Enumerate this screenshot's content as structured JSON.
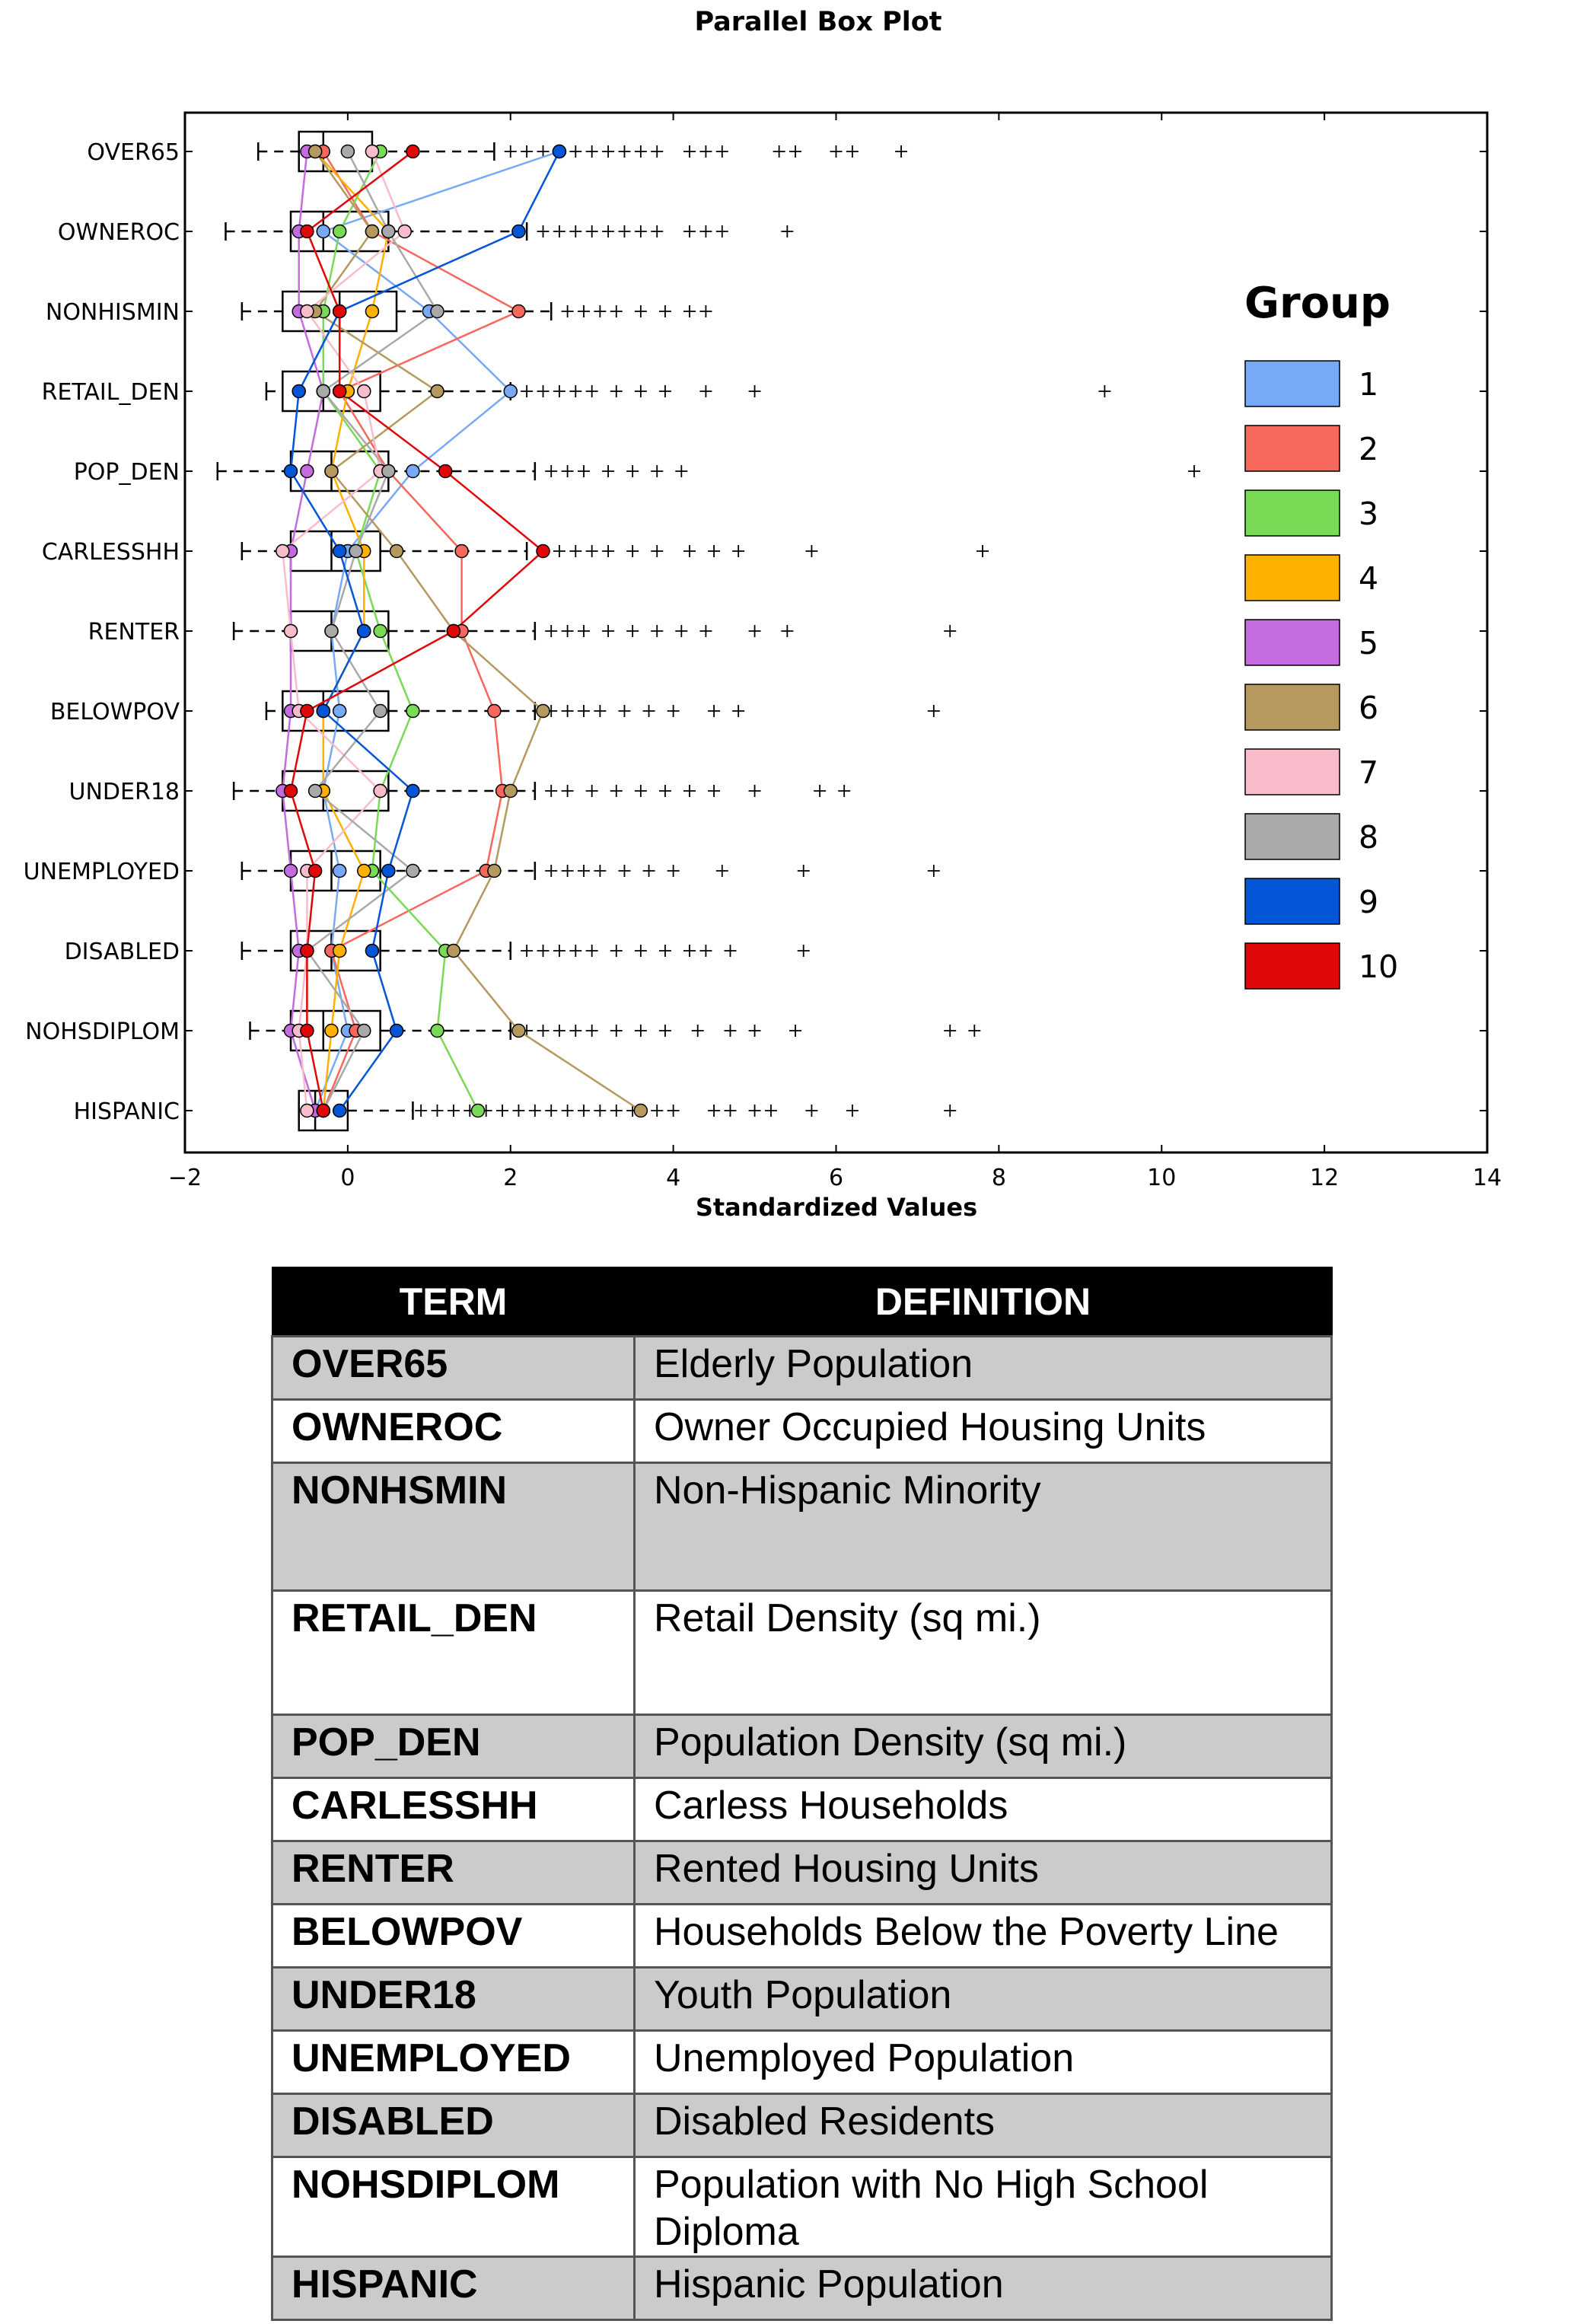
{
  "chart_data": {
    "type": "box",
    "title": "Parallel Box Plot",
    "xlabel": "Standardized Values",
    "xlim": [
      -2,
      14
    ],
    "x_ticks": [
      "−2",
      "0",
      "2",
      "4",
      "6",
      "8",
      "10",
      "12",
      "14"
    ],
    "x_tick_values": [
      -2,
      0,
      2,
      4,
      6,
      8,
      10,
      12,
      14
    ],
    "categories": [
      "OVER65",
      "OWNEROC",
      "NONHISMIN",
      "RETAIL_DEN",
      "POP_DEN",
      "CARLESSHH",
      "RENTER",
      "BELOWPOV",
      "UNDER18",
      "UNEMPLOYED",
      "DISABLED",
      "NOHSDIPLOM",
      "HISPANIC"
    ],
    "boxes": [
      {
        "whisker_low": -1.1,
        "q1": -0.6,
        "median": -0.3,
        "q3": 0.3,
        "whisker_high": 1.8,
        "outliers": [
          2.0,
          2.2,
          2.4,
          2.6,
          2.8,
          3.0,
          3.2,
          3.4,
          3.6,
          3.8,
          4.2,
          4.4,
          4.6,
          5.3,
          5.5,
          6.0,
          6.2,
          6.8
        ]
      },
      {
        "whisker_low": -1.5,
        "q1": -0.7,
        "median": -0.3,
        "q3": 0.5,
        "whisker_high": 2.2,
        "outliers": [
          2.4,
          2.6,
          2.8,
          3.0,
          3.2,
          3.4,
          3.6,
          3.8,
          4.2,
          4.4,
          4.6,
          5.4
        ]
      },
      {
        "whisker_low": -1.3,
        "q1": -0.8,
        "median": -0.1,
        "q3": 0.6,
        "whisker_high": 2.5,
        "outliers": [
          2.7,
          2.9,
          3.1,
          3.3,
          3.6,
          3.9,
          4.2,
          4.4
        ]
      },
      {
        "whisker_low": -1.0,
        "q1": -0.8,
        "median": -0.3,
        "q3": 0.4,
        "whisker_high": 2.0,
        "outliers": [
          2.2,
          2.4,
          2.6,
          2.8,
          3.0,
          3.3,
          3.6,
          3.9,
          4.4,
          5.0,
          9.3
        ]
      },
      {
        "whisker_low": -1.6,
        "q1": -0.7,
        "median": -0.2,
        "q3": 0.5,
        "whisker_high": 2.3,
        "outliers": [
          2.5,
          2.7,
          2.9,
          3.2,
          3.5,
          3.8,
          4.1,
          10.4
        ]
      },
      {
        "whisker_low": -1.3,
        "q1": -0.7,
        "median": -0.2,
        "q3": 0.4,
        "whisker_high": 2.2,
        "outliers": [
          2.4,
          2.6,
          2.8,
          3.0,
          3.2,
          3.5,
          3.8,
          4.2,
          4.5,
          4.8,
          5.7,
          7.8
        ]
      },
      {
        "whisker_low": -1.4,
        "q1": -0.7,
        "median": -0.2,
        "q3": 0.5,
        "whisker_high": 2.3,
        "outliers": [
          2.5,
          2.7,
          2.9,
          3.2,
          3.5,
          3.8,
          4.1,
          4.4,
          5.0,
          5.4,
          7.4
        ]
      },
      {
        "whisker_low": -1.0,
        "q1": -0.8,
        "median": -0.3,
        "q3": 0.5,
        "whisker_high": 2.3,
        "outliers": [
          2.5,
          2.7,
          2.9,
          3.1,
          3.4,
          3.7,
          4.0,
          4.5,
          4.8,
          7.2
        ]
      },
      {
        "whisker_low": -1.4,
        "q1": -0.8,
        "median": -0.3,
        "q3": 0.5,
        "whisker_high": 2.3,
        "outliers": [
          2.5,
          2.7,
          3.0,
          3.3,
          3.6,
          3.9,
          4.2,
          4.5,
          5.0,
          5.8,
          6.1
        ]
      },
      {
        "whisker_low": -1.3,
        "q1": -0.7,
        "median": -0.2,
        "q3": 0.4,
        "whisker_high": 2.3,
        "outliers": [
          2.5,
          2.7,
          2.9,
          3.1,
          3.4,
          3.7,
          4.0,
          4.6,
          5.6,
          7.2
        ]
      },
      {
        "whisker_low": -1.3,
        "q1": -0.7,
        "median": -0.2,
        "q3": 0.4,
        "whisker_high": 2.0,
        "outliers": [
          2.2,
          2.4,
          2.6,
          2.8,
          3.0,
          3.3,
          3.6,
          3.9,
          4.2,
          4.4,
          4.7,
          5.6
        ]
      },
      {
        "whisker_low": -1.2,
        "q1": -0.7,
        "median": -0.3,
        "q3": 0.4,
        "whisker_high": 2.0,
        "outliers": [
          2.2,
          2.4,
          2.6,
          2.8,
          3.0,
          3.3,
          3.6,
          3.9,
          4.3,
          4.7,
          5.0,
          5.5,
          7.4,
          7.7
        ]
      },
      {
        "whisker_low": -0.6,
        "q1": -0.6,
        "median": -0.4,
        "q3": 0.0,
        "whisker_high": 0.8,
        "outliers": [
          0.9,
          1.1,
          1.3,
          1.5,
          1.7,
          1.9,
          2.1,
          2.3,
          2.5,
          2.7,
          2.9,
          3.1,
          3.3,
          3.5,
          3.8,
          4.0,
          4.5,
          4.7,
          5.0,
          5.2,
          5.7,
          6.2,
          7.4
        ]
      }
    ],
    "series": [
      {
        "name": "1",
        "color": "#78a9f7",
        "values": [
          2.6,
          -0.3,
          1.0,
          2.0,
          0.8,
          0.0,
          -0.2,
          -0.1,
          -0.3,
          -0.1,
          -0.2,
          0.0,
          -0.4
        ]
      },
      {
        "name": "2",
        "color": "#f8675c",
        "values": [
          -0.3,
          0.3,
          2.1,
          -0.1,
          0.5,
          1.4,
          1.4,
          1.8,
          1.9,
          1.7,
          -0.2,
          0.1,
          -0.3
        ]
      },
      {
        "name": "3",
        "color": "#79da55",
        "values": [
          0.4,
          -0.1,
          -0.3,
          -0.3,
          0.4,
          0.1,
          0.4,
          0.8,
          0.4,
          0.3,
          1.2,
          1.1,
          1.6
        ]
      },
      {
        "name": "4",
        "color": "#ffb000",
        "values": [
          -0.4,
          0.5,
          0.3,
          0.0,
          -0.2,
          0.2,
          0.2,
          -0.3,
          -0.3,
          0.2,
          -0.1,
          -0.2,
          -0.3
        ]
      },
      {
        "name": "5",
        "color": "#c46be0",
        "values": [
          -0.5,
          -0.6,
          -0.6,
          -0.3,
          -0.5,
          -0.7,
          -0.7,
          -0.7,
          -0.8,
          -0.7,
          -0.6,
          -0.7,
          -0.4
        ]
      },
      {
        "name": "6",
        "color": "#b5995f",
        "values": [
          -0.4,
          0.3,
          -0.4,
          1.1,
          -0.2,
          0.6,
          1.3,
          2.4,
          2.0,
          1.8,
          1.3,
          2.1,
          3.6
        ]
      },
      {
        "name": "7",
        "color": "#f8bccb",
        "values": [
          0.3,
          0.7,
          -0.5,
          0.2,
          0.4,
          -0.8,
          -0.7,
          -0.6,
          0.4,
          -0.5,
          -0.5,
          -0.6,
          -0.5
        ]
      },
      {
        "name": "8",
        "color": "#a9a9a9",
        "values": [
          0.0,
          0.5,
          1.1,
          -0.3,
          0.5,
          0.1,
          -0.2,
          0.4,
          -0.4,
          0.8,
          -0.5,
          0.2,
          -0.3
        ]
      },
      {
        "name": "9",
        "color": "#0356d8",
        "values": [
          2.6,
          2.1,
          -0.1,
          -0.6,
          -0.7,
          -0.1,
          0.2,
          -0.3,
          0.8,
          0.5,
          0.3,
          0.6,
          -0.1
        ]
      },
      {
        "name": "10",
        "color": "#e00808",
        "values": [
          0.8,
          -0.5,
          -0.1,
          -0.1,
          1.2,
          2.4,
          1.3,
          -0.5,
          -0.7,
          -0.4,
          -0.5,
          -0.5,
          -0.3
        ]
      }
    ],
    "legend": {
      "title": "Group",
      "position": "right",
      "labels": [
        "1",
        "2",
        "3",
        "4",
        "5",
        "6",
        "7",
        "8",
        "9",
        "10"
      ]
    }
  },
  "table": {
    "headers": [
      "TERM",
      "DEFINITION"
    ],
    "rows": [
      {
        "term": "OVER65",
        "definition": "Elderly Population"
      },
      {
        "term": "OWNEROC",
        "definition": "Owner Occupied Housing Units"
      },
      {
        "term": "NONHSMIN",
        "definition": "Non-Hispanic Minority"
      },
      {
        "term": "RETAIL_DEN",
        "definition": "Retail Density (sq mi.)"
      },
      {
        "term": "POP_DEN",
        "definition": "Population Density (sq mi.)"
      },
      {
        "term": "CARLESSHH",
        "definition": "Carless Households"
      },
      {
        "term": "RENTER",
        "definition": "Rented Housing Units"
      },
      {
        "term": "BELOWPOV",
        "definition": "Households Below the Poverty Line"
      },
      {
        "term": "UNDER18",
        "definition": "Youth Population"
      },
      {
        "term": "UNEMPLOYED",
        "definition": "Unemployed Population"
      },
      {
        "term": "DISABLED",
        "definition": "Disabled Residents"
      },
      {
        "term": "NOHSDIPLOM",
        "definition": "Population with No High School Diploma"
      },
      {
        "term": "HISPANIC",
        "definition": "Hispanic Population"
      }
    ]
  }
}
